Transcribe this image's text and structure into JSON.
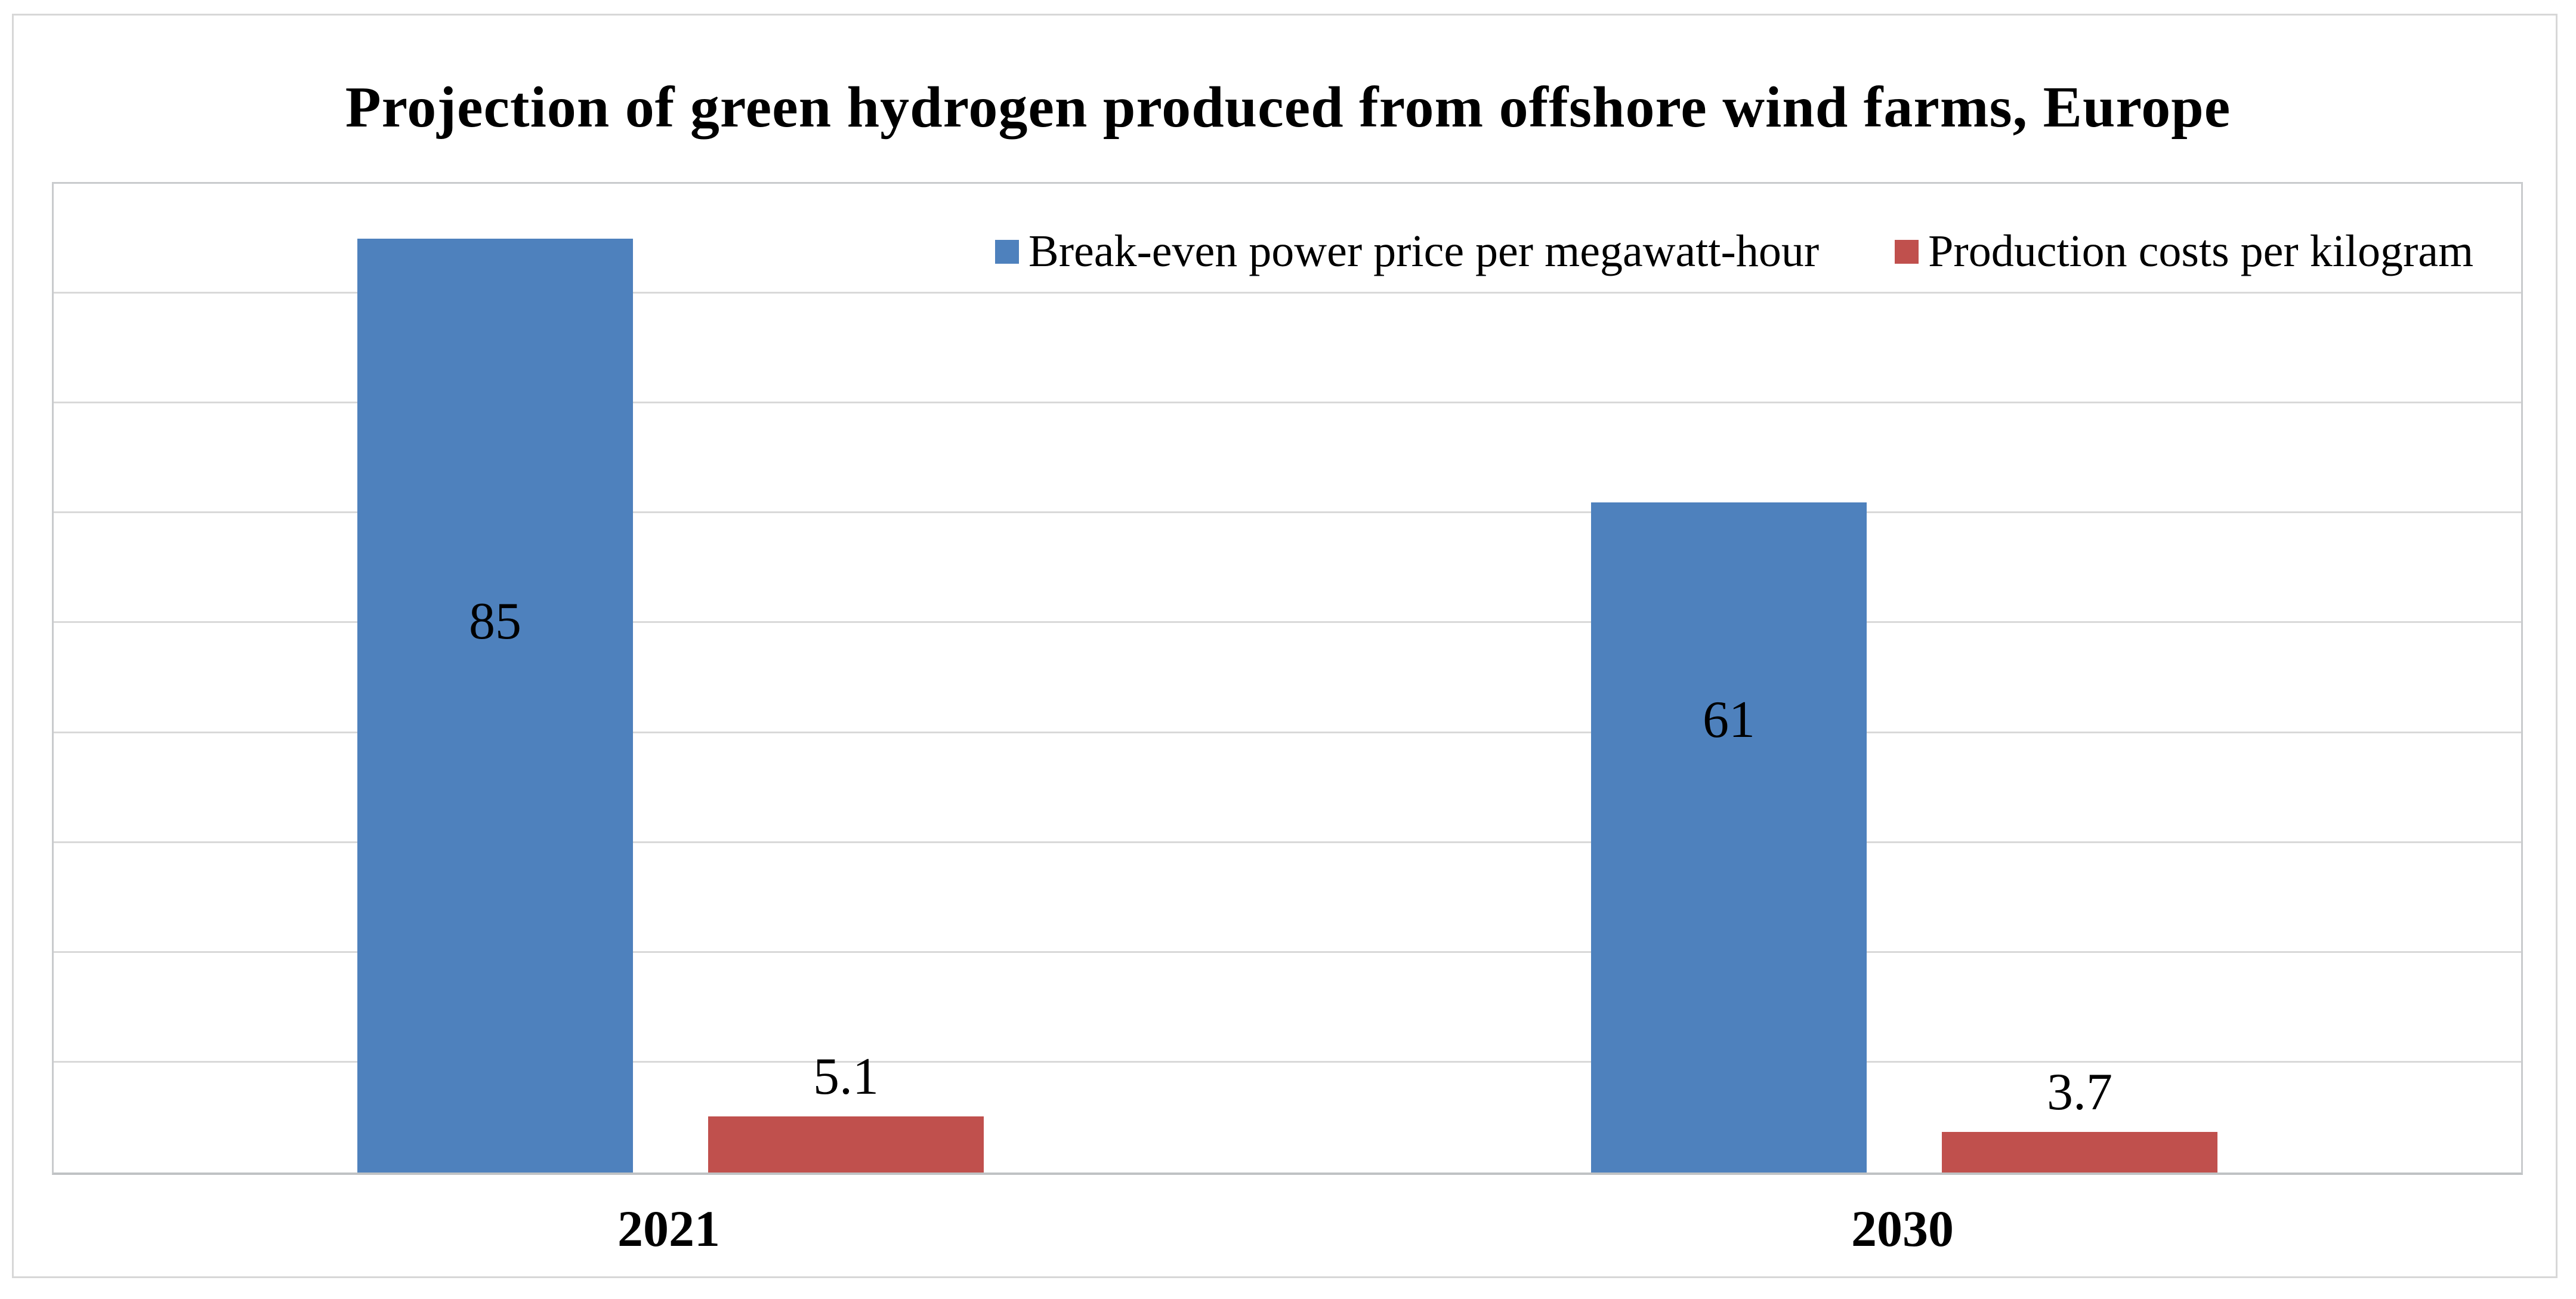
{
  "chart_data": {
    "type": "bar",
    "title": "Projection of green hydrogen produced from offshore wind farms, Europe",
    "categories": [
      "2021",
      "2030"
    ],
    "series": [
      {
        "name": "Break-even power price per megawatt-hour",
        "color": "#4E81BD",
        "values": [
          85,
          61
        ],
        "label_position": "inside"
      },
      {
        "name": "Production costs per kilogram",
        "color": "#C0504D",
        "values": [
          5.1,
          3.7
        ],
        "label_position": "outside-end"
      }
    ],
    "xlabel": "",
    "ylabel": "",
    "ylim": [
      0,
      90
    ],
    "gridline_step": 10,
    "grid": true,
    "y_axis_labels_visible": false,
    "legend_position": "top-inside-right",
    "layout_hints": {
      "inside_label_fraction_from_top": [
        0.41,
        0.325
      ]
    }
  },
  "colors": {
    "background": "#FFFFFF",
    "gridline": "#D9D9D9",
    "plot_border": "#C9CBCD",
    "axis_line": "#BFC2C4",
    "outer_border": "#D7D7D7",
    "text": "#000000"
  }
}
